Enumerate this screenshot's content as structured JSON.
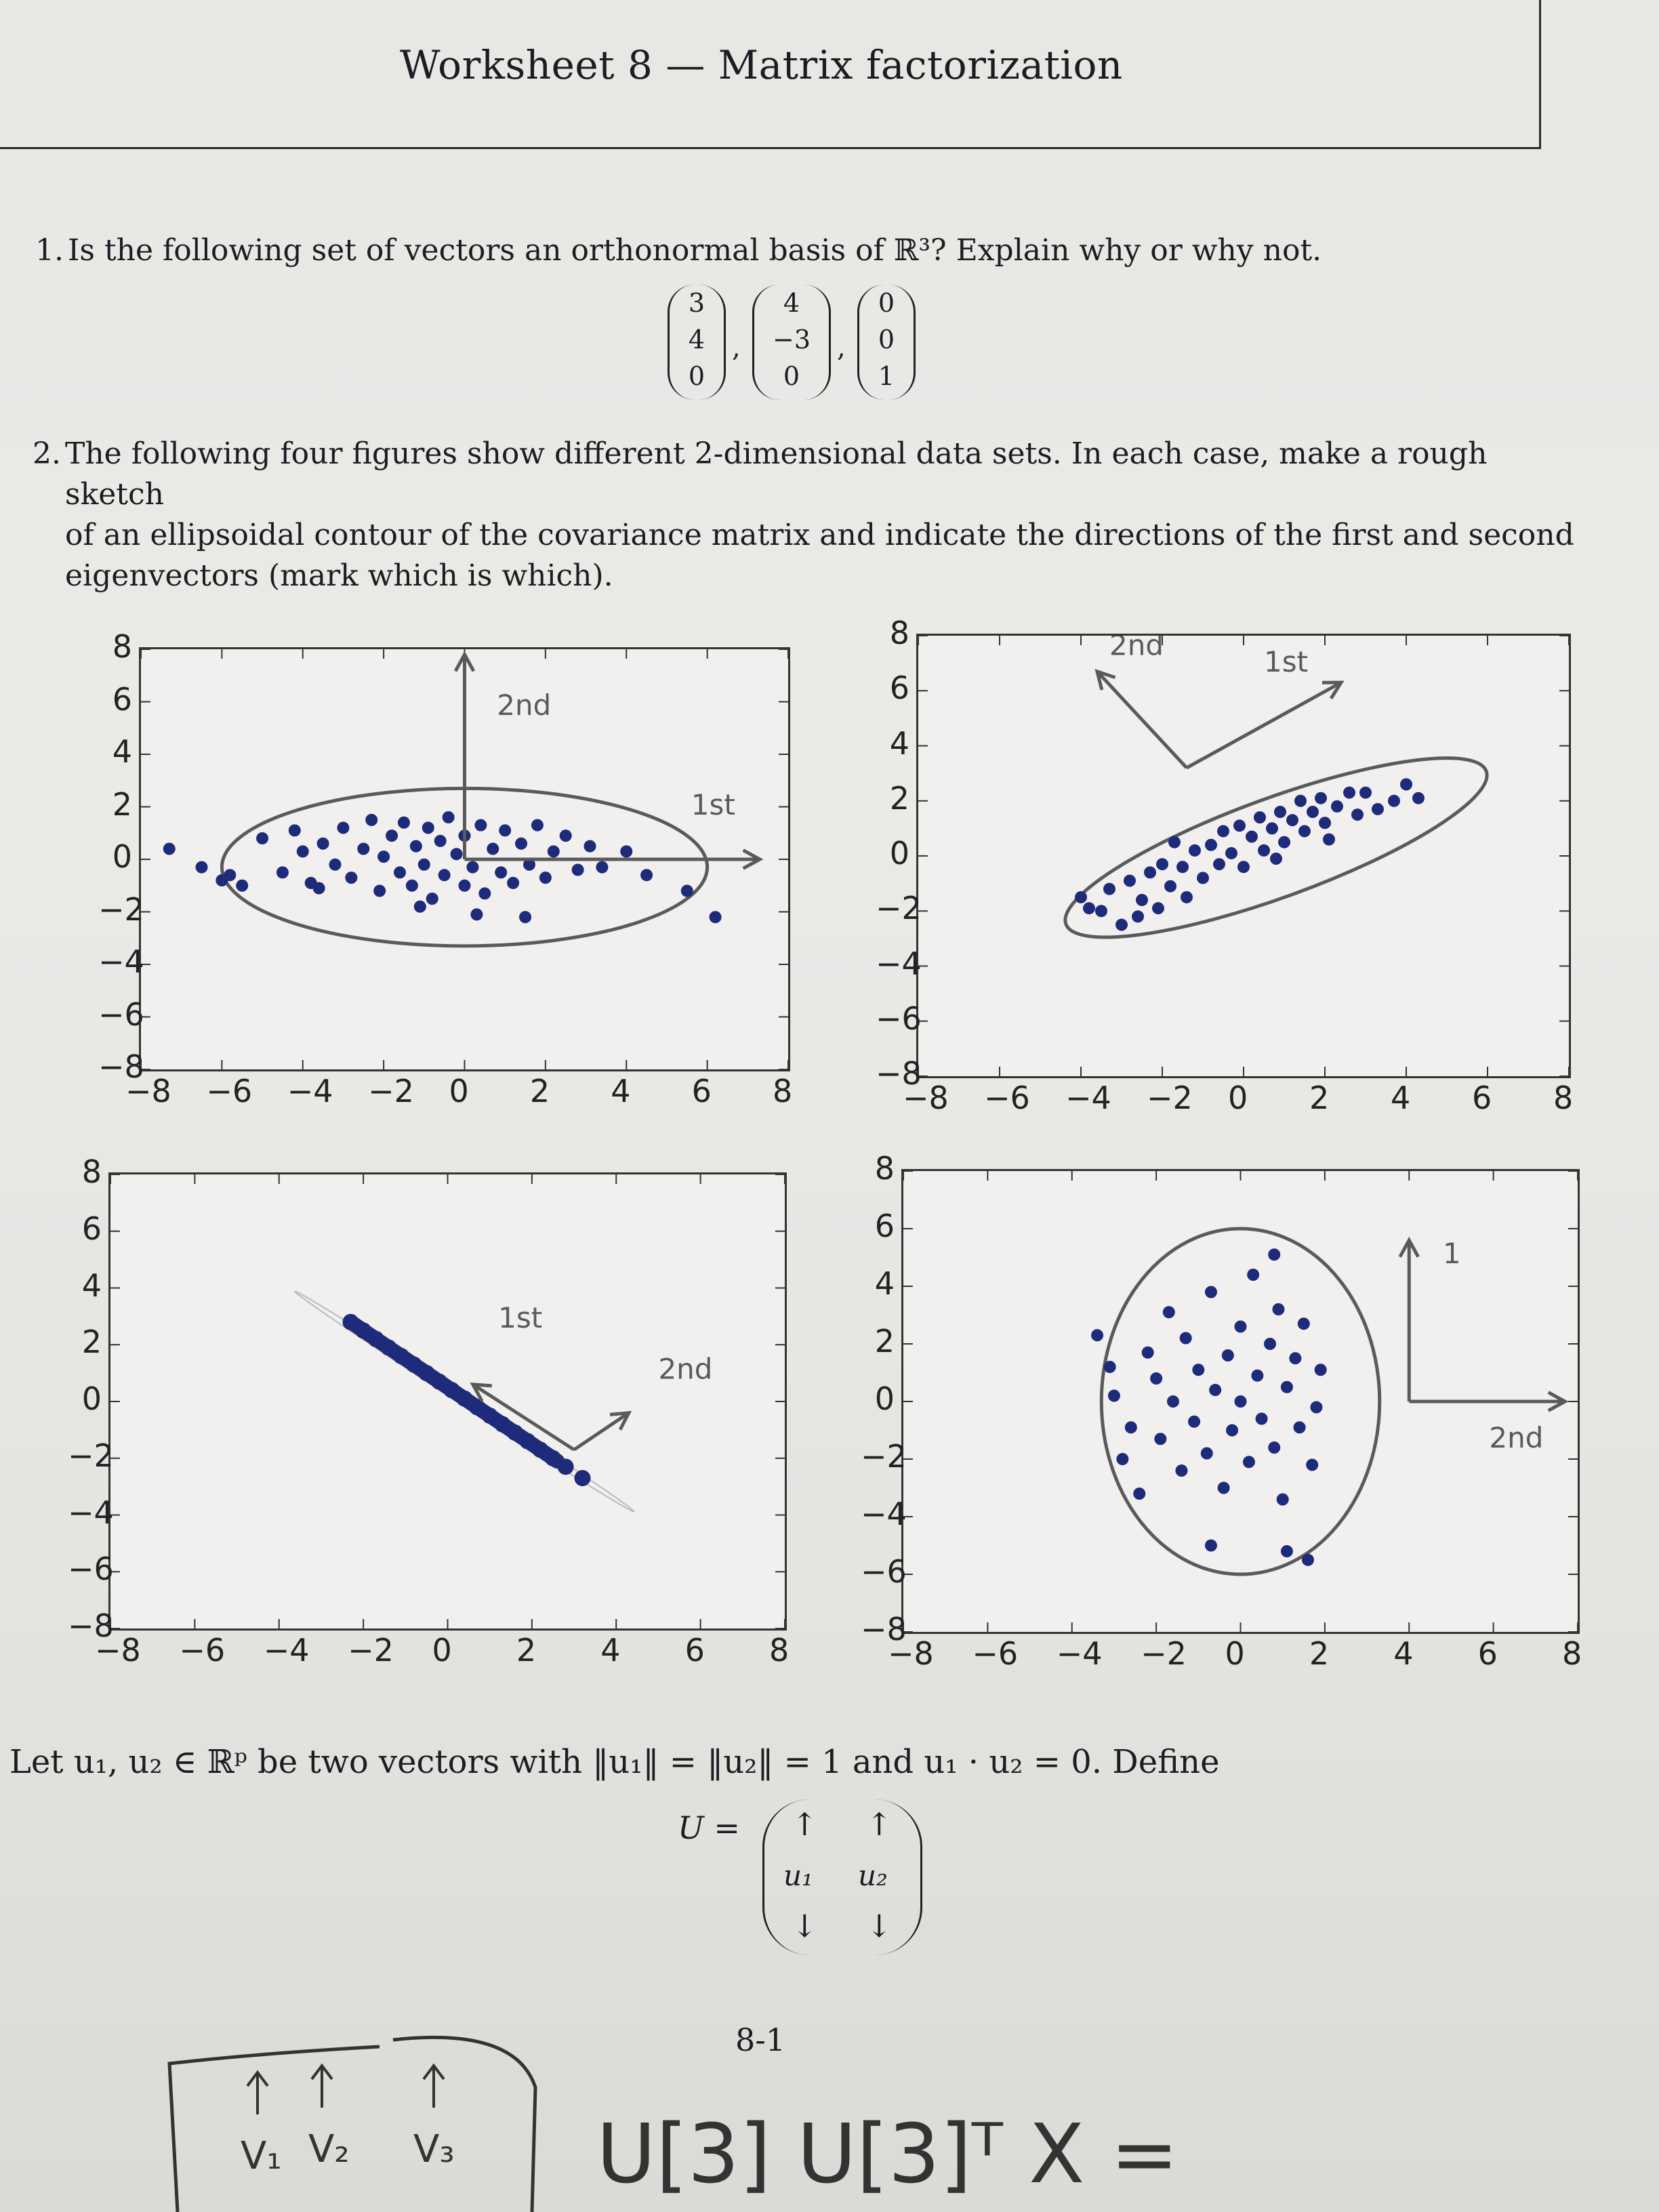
{
  "title": "Worksheet 8 — Matrix factorization",
  "q1": {
    "number": "1.",
    "text": "Is the following set of vectors an orthonormal basis of ℝ³? Explain why or why not.",
    "vectors": [
      [
        "3",
        "4",
        "0"
      ],
      [
        "4",
        "−3",
        "0"
      ],
      [
        "0",
        "0",
        "1"
      ]
    ],
    "separator": ","
  },
  "q2": {
    "number": "2.",
    "line1": "The following four figures show different 2-dimensional data sets. In each case, make a rough sketch",
    "line2": "of an ellipsoidal contour of the covariance matrix and indicate the directions of the first and second",
    "line3": "eigenvectors (mark which is which)."
  },
  "axis_ticks": [
    "−8",
    "−6",
    "−4",
    "−2",
    "0",
    "2",
    "4",
    "6",
    "8"
  ],
  "let_text": "Let u₁, u₂ ∈ ℝᵖ be two vectors with ‖u₁‖ = ‖u₂‖ = 1 and u₁ · u₂ = 0. Define",
  "matrix": {
    "lhs": "U =",
    "cols": [
      "u₁",
      "u₂"
    ],
    "up": "↑",
    "down": "↓"
  },
  "page_number": "8-1",
  "handwriting": {
    "plot1": {
      "first": "1st",
      "second": "2nd"
    },
    "plot2": {
      "first": "1st",
      "second": "2nd"
    },
    "plot3": {
      "first": "1st",
      "second": "2nd"
    },
    "plot4": {
      "first": "1",
      "second": "2nd"
    },
    "bottom_left": [
      "V₁",
      "V₂",
      "V₃"
    ],
    "bottom_formula": "U[3] U[3]ᵀ X ="
  },
  "colors": {
    "points": "#1e2a7a",
    "pencil": "#5a5a5a"
  },
  "chart_data": [
    {
      "type": "scatter",
      "title": "",
      "xlim": [
        -8,
        8
      ],
      "ylim": [
        -8,
        8
      ],
      "description_shape": "horizontal elongated cloud",
      "points": [
        [
          -7.3,
          0.4
        ],
        [
          -6.5,
          -0.3
        ],
        [
          -6,
          -0.8
        ],
        [
          -5.5,
          -1
        ],
        [
          -5,
          0.8
        ],
        [
          -4.5,
          -0.5
        ],
        [
          -4.2,
          1.1
        ],
        [
          -4,
          0.3
        ],
        [
          -3.8,
          -0.9
        ],
        [
          -3.5,
          0.6
        ],
        [
          -3.2,
          -0.2
        ],
        [
          -3,
          1.2
        ],
        [
          -2.8,
          -0.7
        ],
        [
          -2.5,
          0.4
        ],
        [
          -2.3,
          1.5
        ],
        [
          -2.1,
          -1.2
        ],
        [
          -2,
          0.1
        ],
        [
          -1.8,
          0.9
        ],
        [
          -1.6,
          -0.5
        ],
        [
          -1.5,
          1.4
        ],
        [
          -1.3,
          -1
        ],
        [
          -1.2,
          0.5
        ],
        [
          -1,
          -0.2
        ],
        [
          -0.9,
          1.2
        ],
        [
          -0.8,
          -1.5
        ],
        [
          -0.6,
          0.7
        ],
        [
          -0.5,
          -0.6
        ],
        [
          -0.4,
          1.6
        ],
        [
          -0.2,
          0.2
        ],
        [
          0,
          -1
        ],
        [
          0,
          0.9
        ],
        [
          0.2,
          -0.3
        ],
        [
          0.4,
          1.3
        ],
        [
          0.5,
          -1.3
        ],
        [
          0.7,
          0.4
        ],
        [
          0.9,
          -0.5
        ],
        [
          1,
          1.1
        ],
        [
          1.2,
          -0.9
        ],
        [
          1.4,
          0.6
        ],
        [
          1.6,
          -0.2
        ],
        [
          1.8,
          1.3
        ],
        [
          2,
          -0.7
        ],
        [
          2.2,
          0.3
        ],
        [
          2.5,
          0.9
        ],
        [
          2.8,
          -0.4
        ],
        [
          3.1,
          0.5
        ],
        [
          3.4,
          -0.3
        ],
        [
          4,
          0.3
        ],
        [
          4.5,
          -0.6
        ],
        [
          5.5,
          -1.2
        ],
        [
          6.2,
          -2.2
        ],
        [
          -5.8,
          -0.6
        ],
        [
          -3.6,
          -1.1
        ],
        [
          -1.1,
          -1.8
        ],
        [
          0.3,
          -2.1
        ],
        [
          1.5,
          -2.2
        ]
      ]
    },
    {
      "type": "scatter",
      "title": "",
      "xlim": [
        -8,
        8
      ],
      "ylim": [
        -8,
        8
      ],
      "description_shape": "diagonal elongated cloud (positive slope)",
      "points": [
        [
          -4,
          -1.5
        ],
        [
          -3.5,
          -2
        ],
        [
          -3.3,
          -1.2
        ],
        [
          -3,
          -2.5
        ],
        [
          -2.8,
          -0.9
        ],
        [
          -2.5,
          -1.6
        ],
        [
          -2.3,
          -0.6
        ],
        [
          -2.1,
          -1.9
        ],
        [
          -2,
          -0.3
        ],
        [
          -1.8,
          -1.1
        ],
        [
          -1.5,
          -0.4
        ],
        [
          -1.4,
          -1.5
        ],
        [
          -1.2,
          0.2
        ],
        [
          -1,
          -0.8
        ],
        [
          -0.8,
          0.4
        ],
        [
          -0.6,
          -0.3
        ],
        [
          -0.5,
          0.9
        ],
        [
          -0.3,
          0.1
        ],
        [
          -0.1,
          1.1
        ],
        [
          0,
          -0.4
        ],
        [
          0.2,
          0.7
        ],
        [
          0.4,
          1.4
        ],
        [
          0.5,
          0.2
        ],
        [
          0.7,
          1
        ],
        [
          0.9,
          1.6
        ],
        [
          1,
          0.5
        ],
        [
          1.2,
          1.3
        ],
        [
          1.4,
          2
        ],
        [
          1.5,
          0.9
        ],
        [
          1.7,
          1.6
        ],
        [
          1.9,
          2.1
        ],
        [
          2,
          1.2
        ],
        [
          2.3,
          1.8
        ],
        [
          2.6,
          2.3
        ],
        [
          2.8,
          1.5
        ],
        [
          3,
          2.3
        ],
        [
          3.3,
          1.7
        ],
        [
          3.7,
          2
        ],
        [
          4,
          2.6
        ],
        [
          4.3,
          2.1
        ],
        [
          -3.8,
          -1.9
        ],
        [
          -2.6,
          -2.2
        ],
        [
          -1.7,
          0.5
        ],
        [
          0.8,
          -0.1
        ],
        [
          2.1,
          0.6
        ]
      ]
    },
    {
      "type": "scatter",
      "title": "",
      "xlim": [
        -8,
        8
      ],
      "ylim": [
        -8,
        8
      ],
      "description_shape": "points along a line y = -x roughly",
      "points": [
        [
          -2.3,
          2.8
        ],
        [
          -2,
          2.5
        ],
        [
          -1.7,
          2.2
        ],
        [
          -1.4,
          1.9
        ],
        [
          -1.1,
          1.6
        ],
        [
          -0.8,
          1.3
        ],
        [
          -0.5,
          1
        ],
        [
          -0.2,
          0.7
        ],
        [
          0.1,
          0.4
        ],
        [
          0.4,
          0.1
        ],
        [
          0.7,
          -0.2
        ],
        [
          1,
          -0.5
        ],
        [
          1.3,
          -0.8
        ],
        [
          1.6,
          -1.1
        ],
        [
          1.9,
          -1.4
        ],
        [
          2.2,
          -1.7
        ],
        [
          2.5,
          -2
        ],
        [
          2.8,
          -2.3
        ],
        [
          3.2,
          -2.7
        ]
      ]
    },
    {
      "type": "scatter",
      "title": "",
      "xlim": [
        -8,
        8
      ],
      "ylim": [
        -8,
        8
      ],
      "description_shape": "vertically elongated cloud",
      "points": [
        [
          -3.4,
          2.3
        ],
        [
          -3.1,
          1.2
        ],
        [
          -3,
          0.2
        ],
        [
          -2.8,
          -2
        ],
        [
          -2.6,
          -0.9
        ],
        [
          -2.4,
          -3.2
        ],
        [
          -2.2,
          1.7
        ],
        [
          -2,
          0.8
        ],
        [
          -1.9,
          -1.3
        ],
        [
          -1.7,
          3.1
        ],
        [
          -1.6,
          0
        ],
        [
          -1.4,
          -2.4
        ],
        [
          -1.3,
          2.2
        ],
        [
          -1.1,
          -0.7
        ],
        [
          -1,
          1.1
        ],
        [
          -0.8,
          -1.8
        ],
        [
          -0.7,
          3.8
        ],
        [
          -0.6,
          0.4
        ],
        [
          -0.4,
          -3
        ],
        [
          -0.3,
          1.6
        ],
        [
          -0.2,
          -1
        ],
        [
          0,
          2.6
        ],
        [
          0,
          0
        ],
        [
          0.2,
          -2.1
        ],
        [
          0.3,
          4.4
        ],
        [
          0.4,
          0.9
        ],
        [
          0.5,
          -0.6
        ],
        [
          0.7,
          2
        ],
        [
          0.8,
          -1.6
        ],
        [
          0.9,
          3.2
        ],
        [
          1,
          -3.4
        ],
        [
          1.1,
          0.5
        ],
        [
          1.3,
          1.5
        ],
        [
          1.4,
          -0.9
        ],
        [
          1.5,
          2.7
        ],
        [
          1.7,
          -2.2
        ],
        [
          1.8,
          -0.2
        ],
        [
          1.9,
          1.1
        ],
        [
          -0.7,
          -5
        ],
        [
          1.1,
          -5.2
        ],
        [
          1.6,
          -5.5
        ],
        [
          0.8,
          5.1
        ]
      ]
    }
  ]
}
